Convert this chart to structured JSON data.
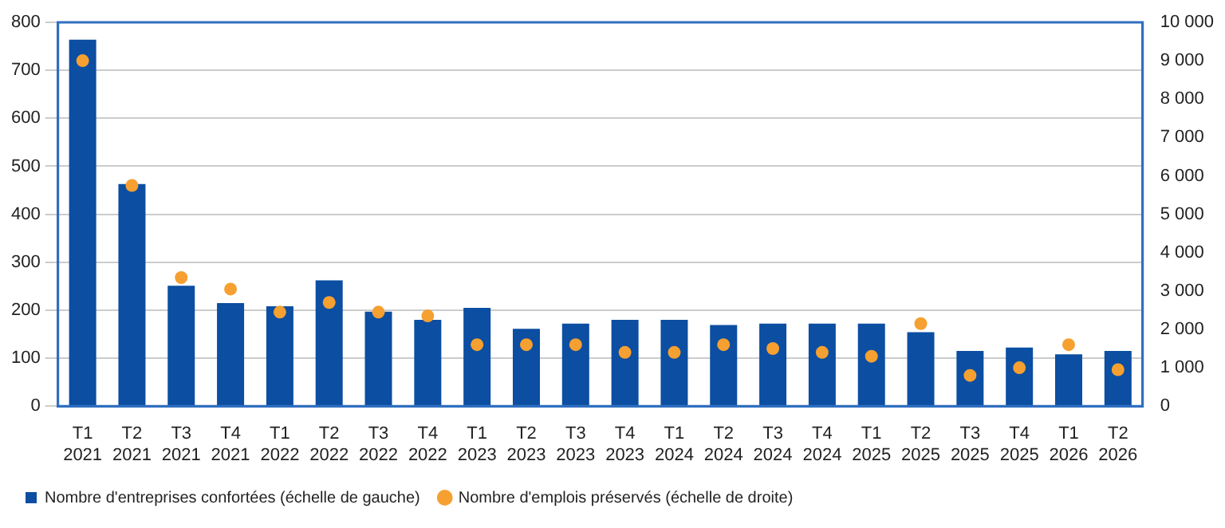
{
  "chart_data": {
    "type": "bar",
    "categories": [
      "T1 2021",
      "T2 2021",
      "T3 2021",
      "T4 2021",
      "T1 2022",
      "T2 2022",
      "T3 2022",
      "T4 2022",
      "T1 2023",
      "T2 2023",
      "T3 2023",
      "T4 2023",
      "T1 2024",
      "T2 2024",
      "T3 2024",
      "T4 2024",
      "T1 2025",
      "T2 2025",
      "T3 2025",
      "T4 2025",
      "T1 2026",
      "T2 2026"
    ],
    "series": [
      {
        "name": "Nombre d'entreprises confortées (échelle de gauche)",
        "color": "#0b4ea2",
        "values": [
          764,
          463,
          251,
          215,
          208,
          262,
          197,
          180,
          205,
          161,
          172,
          180,
          180,
          169,
          172,
          172,
          172,
          154,
          115,
          122,
          108,
          115
        ]
      },
      {
        "name": "Nombre d'emplois préservés (échelle de droite)",
        "type": "scatter",
        "axis": "y2",
        "color": "#f5a030",
        "values": [
          9000,
          5750,
          3350,
          3050,
          2450,
          2700,
          2450,
          2350,
          1600,
          1600,
          1600,
          1400,
          1400,
          1600,
          1500,
          1400,
          1300,
          2150,
          800,
          1000,
          1600,
          950
        ]
      }
    ],
    "ylim": [
      0,
      800
    ],
    "yticks": [
      0,
      100,
      200,
      300,
      400,
      500,
      600,
      700,
      800
    ],
    "y2lim": [
      0,
      10000
    ],
    "y2ticks": [
      0,
      {
        "value": 1000,
        "label": "1 000"
      },
      {
        "value": 2000,
        "label": "2 000"
      },
      {
        "value": 3000,
        "label": "3 000"
      },
      {
        "value": 4000,
        "label": "4 000"
      },
      {
        "value": 5000,
        "label": "5 000"
      },
      {
        "value": 6000,
        "label": "6 000"
      },
      {
        "value": 7000,
        "label": "7 000"
      },
      {
        "value": 8000,
        "label": "8 000"
      },
      {
        "value": 9000,
        "label": "9 000"
      },
      {
        "value": 10000,
        "label": "10 000"
      }
    ],
    "grid": "y",
    "legend": "bottom",
    "marker": "circle"
  }
}
